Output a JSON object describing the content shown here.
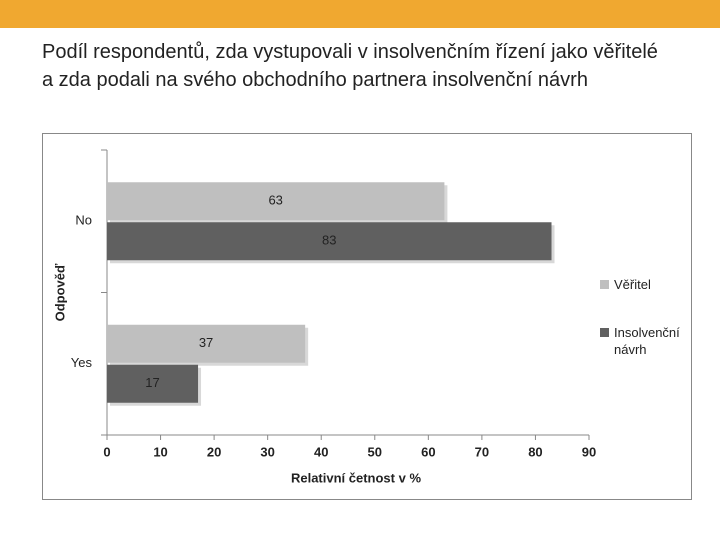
{
  "header": {
    "title": "Podíl respondentů, zda vystupovali v insolvenčním řízení jako věřitelé a zda podali na svého obchodního partnera insolvenční návrh"
  },
  "chart_data": {
    "type": "bar",
    "orientation": "horizontal",
    "categories": [
      "No",
      "Yes"
    ],
    "series": [
      {
        "name": "Věřitel",
        "color": "#bfbfbf",
        "values": [
          63,
          37
        ]
      },
      {
        "name": "Insolvenční návrh",
        "color": "#606060",
        "values": [
          83,
          17
        ]
      }
    ],
    "xlim": [
      0,
      90
    ],
    "xticks": [
      0,
      10,
      20,
      30,
      40,
      50,
      60,
      70,
      80,
      90
    ],
    "x_label": "Relativní četnost v %",
    "y_label": "Odpověď",
    "legend": "right"
  }
}
